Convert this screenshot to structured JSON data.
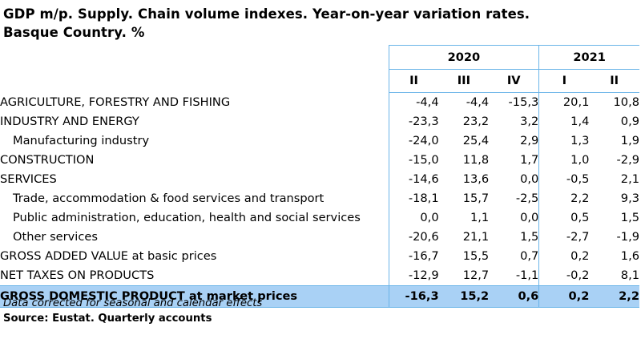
{
  "title_line1": "GDP m/p. Supply. Chain volume indexes. Year-on-year variation rates.",
  "title_line2": "Basque Country. %",
  "years": [
    "2020",
    "2021"
  ],
  "quarters": [
    "II",
    "III",
    "IV",
    "I",
    "II"
  ],
  "rows": [
    {
      "label": "AGRICULTURE, FORESTRY AND FISHING",
      "values": [
        "-4,4",
        "-4,4",
        "-15,3",
        "20,1",
        "10,8"
      ]
    },
    {
      "label": "INDUSTRY AND ENERGY",
      "values": [
        "-23,3",
        "23,2",
        "3,2",
        "1,4",
        "0,9"
      ]
    },
    {
      "label": "Manufacturing industry",
      "values": [
        "-24,0",
        "25,4",
        "2,9",
        "1,3",
        "1,9"
      ]
    },
    {
      "label": "CONSTRUCTION",
      "values": [
        "-15,0",
        "11,8",
        "1,7",
        "1,0",
        "-2,9"
      ]
    },
    {
      "label": "SERVICES",
      "values": [
        "-14,6",
        "13,6",
        "0,0",
        "-0,5",
        "2,1"
      ]
    },
    {
      "label": "Trade, accommodation & food services and transport",
      "values": [
        "-18,1",
        "15,7",
        "-2,5",
        "2,2",
        "9,3"
      ]
    },
    {
      "label": "Public administration, education, health and social services",
      "values": [
        "0,0",
        "1,1",
        "0,0",
        "0,5",
        "1,5"
      ]
    },
    {
      "label": "Other services",
      "values": [
        "-20,6",
        "21,1",
        "1,5",
        "-2,7",
        "-1,9"
      ]
    },
    {
      "label": "GROSS ADDED VALUE at basic prices",
      "values": [
        "-16,7",
        "15,5",
        "0,7",
        "0,2",
        "1,6"
      ]
    },
    {
      "label": "NET TAXES ON PRODUCTS",
      "values": [
        "-12,9",
        "12,7",
        "-1,1",
        "-0,2",
        "8,1"
      ]
    }
  ],
  "total": {
    "label": "GROSS DOMESTIC PRODUCT at market prices",
    "values": [
      "-16,3",
      "15,2",
      "0,6",
      "0,2",
      "2,2"
    ]
  },
  "note": "Data corrected for seasonal and calendar effects",
  "source": "Source: Eustat. Quarterly accounts",
  "colors": {
    "header_border": "#6ab4e8",
    "total_row_bg": "#a9d1f5"
  }
}
